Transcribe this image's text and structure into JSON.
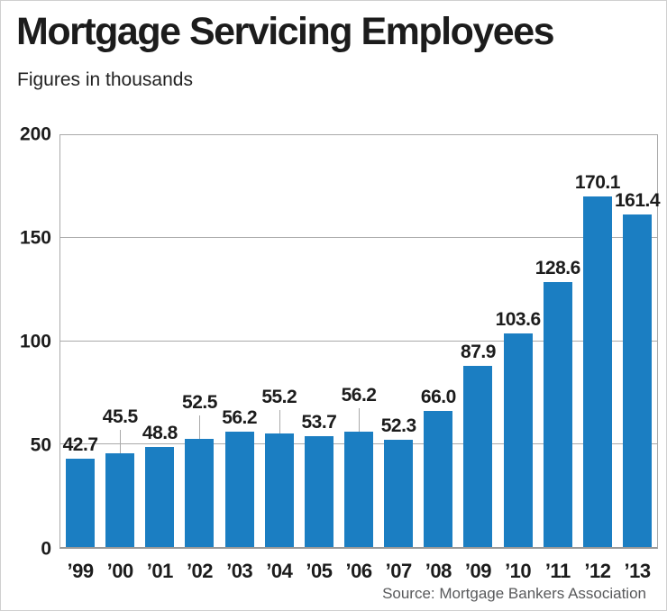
{
  "title": "Mortgage Servicing Employees",
  "subtitle": "Figures in thousands",
  "source": "Source: Mortgage Bankers Association",
  "colors": {
    "bar": "#1b7ec2",
    "grid": "#aaaaaa",
    "axis": "#999999",
    "text": "#1c1c1c",
    "source_text": "#58595b"
  },
  "chart_data": {
    "type": "bar",
    "title": "Mortgage Servicing Employees",
    "subtitle": "Figures in thousands",
    "xlabel": "",
    "ylabel": "",
    "units": "thousands",
    "ylim": [
      0,
      200
    ],
    "yticks": [
      0,
      50,
      100,
      150,
      200
    ],
    "grid": true,
    "value_labels": true,
    "categories": [
      "’99",
      "’00",
      "’01",
      "’02",
      "’03",
      "’04",
      "’05",
      "’06",
      "’07",
      "’08",
      "’09",
      "’10",
      "’11",
      "’12",
      "’13"
    ],
    "values": [
      42.7,
      45.5,
      48.8,
      52.5,
      56.2,
      55.2,
      53.7,
      56.2,
      52.3,
      66.0,
      87.9,
      103.6,
      128.6,
      170.1,
      161.4
    ],
    "value_label_texts": [
      "42.7",
      "45.5",
      "48.8",
      "52.5",
      "56.2",
      "55.2",
      "53.7",
      "56.2",
      "52.3",
      "66.0",
      "87.9",
      "103.6",
      "128.6",
      "170.1",
      "161.4"
    ],
    "leader_line_indices": [
      1,
      3,
      5,
      7
    ],
    "source": "Source: Mortgage Bankers Association"
  }
}
